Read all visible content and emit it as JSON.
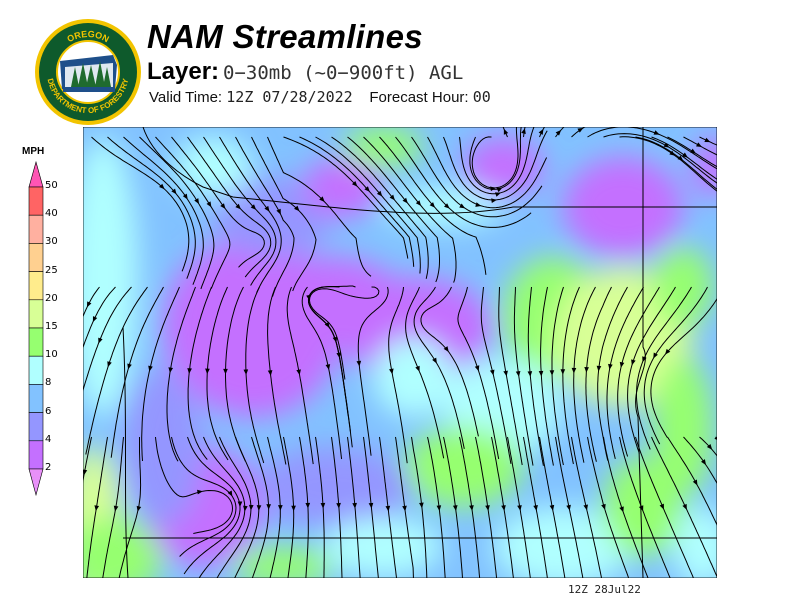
{
  "logo": {
    "text_top": "OREGON",
    "text_bottom": "DEPARTMENT OF FORESTRY"
  },
  "header": {
    "title": "NAM Streamlines",
    "layer_label": "Layer:",
    "layer_value": "0−30mb (~0−900ft) AGL",
    "valid_label": "Valid Time:",
    "valid_value": "12Z 07/28/2022",
    "forecast_label": "Forecast Hour:",
    "forecast_value": "00"
  },
  "legend": {
    "unit": "MPH",
    "ticks": [
      "50",
      "40",
      "30",
      "25",
      "20",
      "15",
      "10",
      "8",
      "6",
      "4",
      "2"
    ],
    "colors": {
      "above_50": "#ff55b4",
      "40_50": "#ff6464",
      "30_40": "#ffb0a0",
      "25_30": "#ffd090",
      "20_25": "#ffec8c",
      "15_20": "#d8ff96",
      "10_15": "#96ff70",
      "8_10": "#b0ffff",
      "6_8": "#82c2ff",
      "4_6": "#9496ff",
      "2_4": "#c470ff",
      "below_2": "#e890f8"
    }
  },
  "map": {
    "field": "0-30mb streamlines and wind speed",
    "region": "Oregon"
  },
  "footer": {
    "timestamp": "12Z 28Jul22"
  }
}
